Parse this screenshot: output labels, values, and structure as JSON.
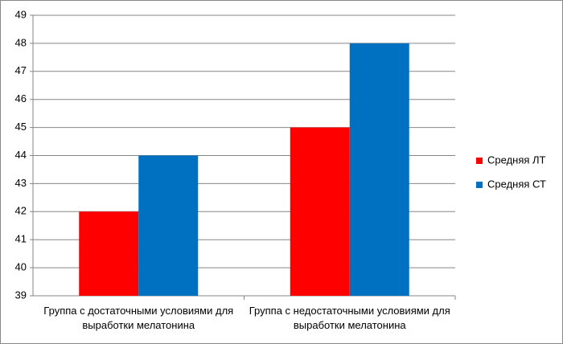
{
  "chart_data": {
    "type": "bar",
    "categories": [
      "Группа с достаточными условиями для выработки мелатонина",
      "Группа с недостаточными условиями для выработки мелатонина"
    ],
    "series": [
      {
        "name": "Средняя ЛТ",
        "color": "#ff0000",
        "values": [
          42,
          45
        ]
      },
      {
        "name": "Средняя СТ",
        "color": "#0070c0",
        "values": [
          44,
          48
        ]
      }
    ],
    "ylim": [
      39,
      49
    ],
    "yticks": [
      39,
      40,
      41,
      42,
      43,
      44,
      45,
      46,
      47,
      48,
      49
    ],
    "grid": true,
    "legend": "right"
  }
}
